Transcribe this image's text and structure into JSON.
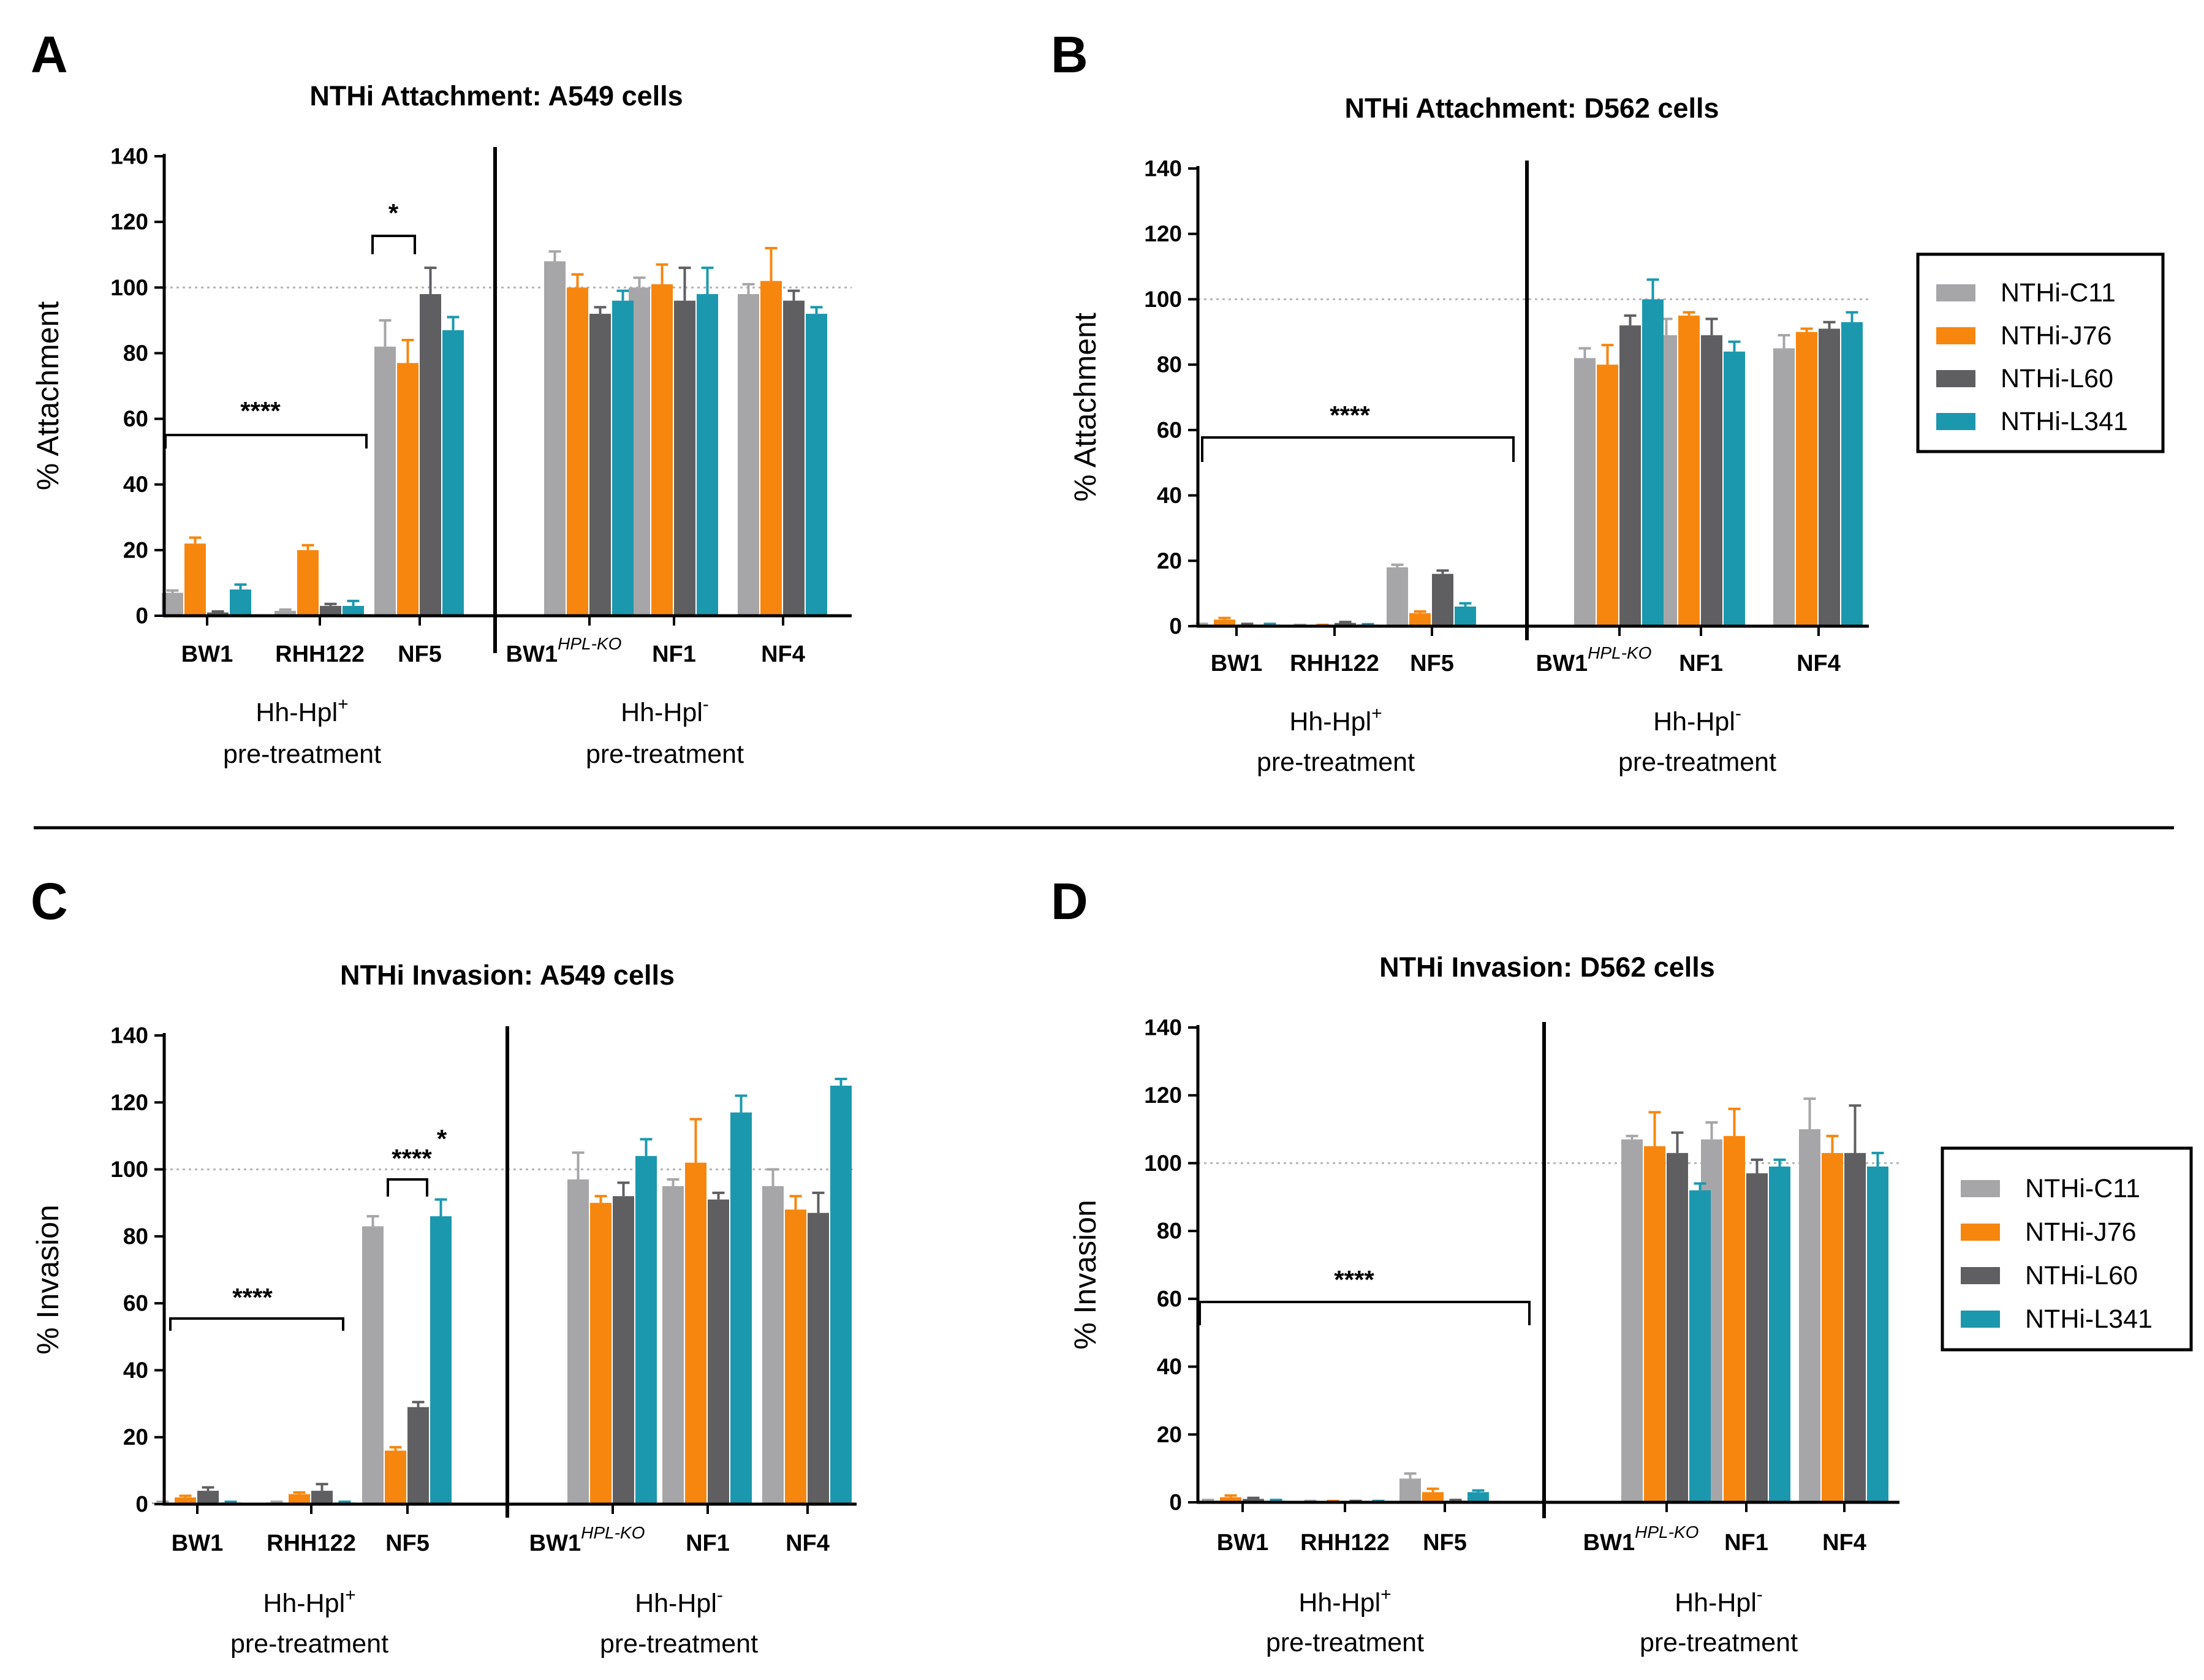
{
  "colors": {
    "NTHi-C11": "#a6a6a8",
    "NTHi-J76": "#f7860f",
    "NTHi-L60": "#5f5f62",
    "NTHi-L341": "#1b98ae",
    "axis": "#000000",
    "reference": "#b5b5b5"
  },
  "legend": {
    "entries": [
      "NTHi-C11",
      "NTHi-J76",
      "NTHi-L60",
      "NTHi-L341"
    ]
  },
  "groups": {
    "left": {
      "line1": "Hh-Hpl",
      "sup": "+",
      "line2": "pre-treatment"
    },
    "right": {
      "line1": "Hh-Hpl",
      "sup": "-",
      "line2": "pre-treatment"
    }
  },
  "bw1_ko": {
    "base": "BW1",
    "sup": "HPL-KO"
  },
  "chart_data": [
    {
      "panel": "A",
      "type": "bar",
      "title": "NTHi Attachment: A549 cells",
      "ylabel": "% Attachment",
      "ylim": [
        0,
        140
      ],
      "yticks": [
        0,
        20,
        40,
        60,
        80,
        100,
        120,
        140
      ],
      "reference_line": 100,
      "categories": [
        "BW1",
        "RHH122",
        "NF5",
        "BW1 HPL-KO",
        "NF1",
        "NF4"
      ],
      "series": [
        {
          "name": "NTHi-C11",
          "values": [
            7,
            1.5,
            82,
            108,
            100,
            98
          ],
          "errors": [
            0.7,
            0.4,
            8,
            3,
            3,
            3
          ]
        },
        {
          "name": "NTHi-J76",
          "values": [
            22,
            20,
            77,
            100,
            101,
            102
          ],
          "errors": [
            1.8,
            1.5,
            7,
            4,
            6,
            10
          ]
        },
        {
          "name": "NTHi-L60",
          "values": [
            1,
            3,
            98,
            92,
            96,
            96
          ],
          "errors": [
            0.3,
            0.6,
            8,
            2,
            10,
            3
          ]
        },
        {
          "name": "NTHi-L341",
          "values": [
            8,
            3,
            87,
            96,
            98,
            92
          ],
          "errors": [
            1.5,
            1.5,
            4,
            3,
            8,
            2
          ]
        }
      ],
      "annotations": [
        {
          "label": "****",
          "type": "span",
          "from": "BW1",
          "to": "RHH122"
        },
        {
          "label": "*",
          "type": "within",
          "category": "NF5"
        }
      ]
    },
    {
      "panel": "B",
      "type": "bar",
      "title": "NTHi Attachment: D562 cells",
      "ylabel": "% Attachment",
      "ylim": [
        0,
        140
      ],
      "yticks": [
        0,
        20,
        40,
        60,
        80,
        100,
        120,
        140
      ],
      "reference_line": 100,
      "categories": [
        "BW1",
        "RHH122",
        "NF5",
        "BW1 HPL-KO",
        "NF1",
        "NF4"
      ],
      "series": [
        {
          "name": "NTHi-C11",
          "values": [
            0.5,
            0.3,
            18,
            82,
            89,
            85
          ],
          "errors": [
            0.2,
            0.1,
            0.8,
            3,
            5,
            4
          ]
        },
        {
          "name": "NTHi-J76",
          "values": [
            2,
            0.3,
            4,
            80,
            95,
            90
          ],
          "errors": [
            0.5,
            0.1,
            0.5,
            6,
            1,
            1
          ]
        },
        {
          "name": "NTHi-L60",
          "values": [
            0.5,
            1,
            16,
            92,
            89,
            91
          ],
          "errors": [
            0.2,
            0.3,
            1,
            3,
            5,
            2
          ]
        },
        {
          "name": "NTHi-L341",
          "values": [
            0.5,
            0.5,
            6,
            100,
            84,
            93
          ],
          "errors": [
            0.2,
            0.1,
            1,
            6,
            3,
            3
          ]
        }
      ],
      "annotations": [
        {
          "label": "****",
          "type": "span",
          "from": "BW1",
          "to": "NF5"
        }
      ]
    },
    {
      "panel": "C",
      "type": "bar",
      "title": "NTHi Invasion: A549 cells",
      "ylabel": "% Invasion",
      "ylim": [
        0,
        140
      ],
      "yticks": [
        0,
        20,
        40,
        60,
        80,
        100,
        120,
        140
      ],
      "reference_line": 100,
      "categories": [
        "BW1",
        "RHH122",
        "NF5",
        "BW1 HPL-KO",
        "NF1",
        "NF4"
      ],
      "series": [
        {
          "name": "NTHi-C11",
          "values": [
            0.5,
            0.5,
            83,
            97,
            95,
            95
          ],
          "errors": [
            0.2,
            0.2,
            3,
            8,
            2,
            5
          ]
        },
        {
          "name": "NTHi-J76",
          "values": [
            2,
            3,
            16,
            90,
            102,
            88
          ],
          "errors": [
            0.5,
            0.5,
            1,
            2,
            13,
            4
          ]
        },
        {
          "name": "NTHi-L60",
          "values": [
            4,
            4,
            29,
            92,
            91,
            87
          ],
          "errors": [
            1,
            2,
            1.5,
            4,
            2,
            6
          ]
        },
        {
          "name": "NTHi-L341",
          "values": [
            0.5,
            0.5,
            86,
            104,
            117,
            125
          ],
          "errors": [
            0.2,
            0.2,
            5,
            5,
            5,
            2
          ]
        }
      ],
      "annotations": [
        {
          "label": "****",
          "type": "span",
          "from": "BW1",
          "to": "RHH122"
        },
        {
          "label": "****",
          "type": "within",
          "category": "NF5"
        },
        {
          "label": "*",
          "type": "within",
          "category": "NF5"
        }
      ]
    },
    {
      "panel": "D",
      "type": "bar",
      "title": "NTHi Invasion: D562 cells",
      "ylabel": "% Invasion",
      "ylim": [
        0,
        140
      ],
      "yticks": [
        0,
        20,
        40,
        60,
        80,
        100,
        120,
        140
      ],
      "reference_line": 100,
      "categories": [
        "BW1",
        "RHH122",
        "NF5",
        "BW1 HPL-KO",
        "NF1",
        "NF4"
      ],
      "series": [
        {
          "name": "NTHi-C11",
          "values": [
            0.5,
            0.3,
            7,
            107,
            107,
            110
          ],
          "errors": [
            0.2,
            0.1,
            1.5,
            1,
            5,
            9
          ]
        },
        {
          "name": "NTHi-J76",
          "values": [
            1.5,
            0.3,
            3,
            105,
            108,
            103
          ],
          "errors": [
            0.5,
            0.1,
            1,
            10,
            8,
            5
          ]
        },
        {
          "name": "NTHi-L60",
          "values": [
            1,
            0.3,
            0.5,
            103,
            97,
            103
          ],
          "errors": [
            0.3,
            0.1,
            0.2,
            6,
            4,
            14
          ]
        },
        {
          "name": "NTHi-L341",
          "values": [
            0.5,
            0.3,
            3,
            92,
            99,
            99
          ],
          "errors": [
            0.2,
            0.1,
            0.5,
            2,
            2,
            4
          ]
        }
      ],
      "annotations": [
        {
          "label": "****",
          "type": "span",
          "from": "BW1",
          "to": "NF5"
        }
      ]
    }
  ]
}
